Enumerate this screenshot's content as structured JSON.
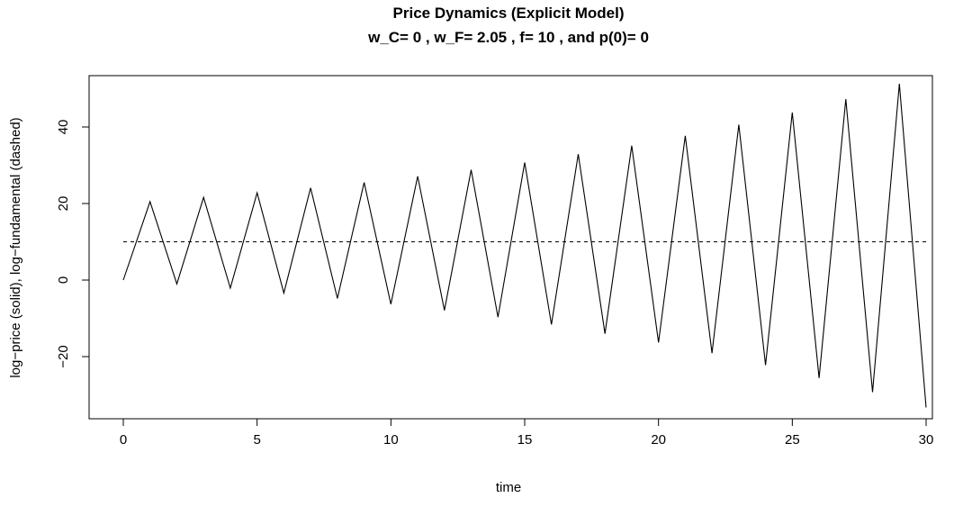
{
  "chart_data": {
    "type": "line",
    "title": "Price Dynamics (Explicit Model)",
    "subtitle": "w_C= 0 , w_F= 2.05 , f= 10 , and p(0)= 0",
    "xlabel": "time",
    "ylabel": "log−price (solid), log−fundamental (dashed)",
    "xlim": [
      0,
      30
    ],
    "ylim": [
      -37,
      52
    ],
    "x_ticks": [
      0,
      5,
      10,
      15,
      20,
      25,
      30
    ],
    "y_ticks": [
      -20,
      0,
      20,
      40
    ],
    "x_tick_labels": [
      "0",
      "5",
      "10",
      "15",
      "20",
      "25",
      "30"
    ],
    "y_tick_labels": [
      "−20",
      "0",
      "20",
      "40"
    ],
    "grid": false,
    "series": [
      {
        "style": "solid",
        "color": "#000000",
        "x": [
          0,
          1,
          2,
          3,
          4,
          5,
          6,
          7,
          8,
          9,
          10,
          11,
          12,
          13,
          14,
          15,
          16,
          17,
          18,
          19,
          20,
          21,
          22,
          23,
          24,
          25,
          26,
          27,
          28,
          29,
          30
        ],
        "y": [
          0,
          20.5,
          -1.0,
          21.6,
          -2.1,
          22.8,
          -3.4,
          24.1,
          -4.8,
          25.5,
          -6.3,
          27.1,
          -7.9,
          28.8,
          -9.7,
          30.7,
          -11.6,
          32.9,
          -14.0,
          35.1,
          -16.3,
          37.7,
          -19.1,
          40.6,
          -22.2,
          43.8,
          -25.6,
          47.3,
          -29.3,
          51.3,
          -33.3
        ]
      },
      {
        "style": "dashed",
        "color": "#000000",
        "x": [
          0,
          30
        ],
        "y": [
          10,
          10
        ]
      }
    ]
  }
}
